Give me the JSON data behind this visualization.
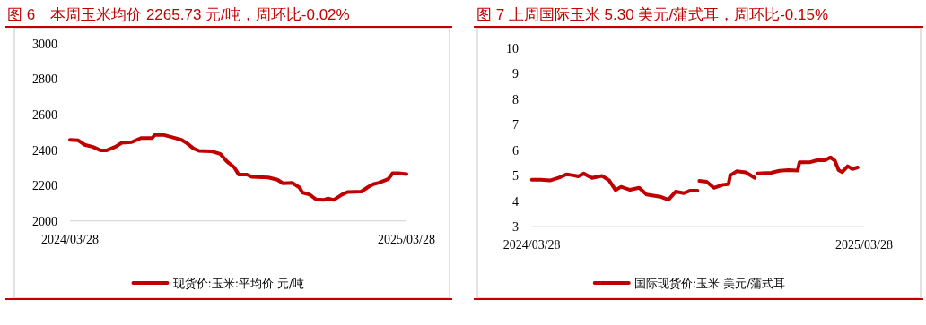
{
  "chart_data": [
    {
      "type": "line",
      "title": "图 6　本周玉米均价 2265.73 元/吨，周环比-0.02%",
      "x": [
        "2024-03-28",
        "2024-04-06",
        "2024-04-13",
        "2024-04-22",
        "2024-04-30",
        "2024-05-07",
        "2024-05-17",
        "2024-05-23",
        "2024-06-03",
        "2024-06-13",
        "2024-06-25",
        "2024-06-28",
        "2024-07-08",
        "2024-07-17",
        "2024-07-27",
        "2024-08-02",
        "2024-08-09",
        "2024-08-15",
        "2024-08-28",
        "2024-09-07",
        "2024-09-14",
        "2024-09-22",
        "2024-09-27",
        "2024-10-06",
        "2024-10-11",
        "2024-10-29",
        "2024-11-08",
        "2024-11-14",
        "2024-11-24",
        "2024-12-02",
        "2024-12-05",
        "2024-12-13",
        "2024-12-20",
        "2024-12-28",
        "2025-01-02",
        "2025-01-08",
        "2025-01-17",
        "2025-01-23",
        "2025-02-07",
        "2025-02-15",
        "2025-02-20",
        "2025-02-26",
        "2025-03-08",
        "2025-03-13",
        "2025-03-19",
        "2025-03-28"
      ],
      "series": [
        {
          "name": "现货价:玉米:平均价 元/吨",
          "color": "#c00000",
          "values": [
            2457,
            2454,
            2429,
            2417,
            2398,
            2398,
            2420,
            2440,
            2444,
            2467,
            2467,
            2484,
            2484,
            2471,
            2457,
            2437,
            2408,
            2395,
            2393,
            2378,
            2336,
            2303,
            2261,
            2261,
            2249,
            2245,
            2232,
            2212,
            2215,
            2188,
            2160,
            2148,
            2121,
            2118,
            2126,
            2118,
            2148,
            2163,
            2165,
            2193,
            2207,
            2215,
            2235,
            2269,
            2269,
            2264
          ]
        }
      ],
      "xlim": [
        "2024-03-28",
        "2025-03-28"
      ],
      "xticks": [
        {
          "value": "2024-03-28",
          "label": "2024/03/28"
        },
        {
          "value": "2025-03-28",
          "label": "2025/03/28"
        }
      ],
      "ylim": [
        2000,
        3000
      ],
      "yticks": [
        2000,
        2200,
        2400,
        2600,
        2800,
        3000
      ],
      "grid": false,
      "legend": "bottom",
      "marker": "none",
      "line_style": "solid"
    },
    {
      "type": "line",
      "title": "图 7 上周国际玉米 5.30 美元/蒲式耳，周环比-0.15%",
      "series": [
        {
          "name": "国际现货价:玉米 美元/蒲式耳",
          "color": "#c00000",
          "x": [
            "2024-03-28",
            "2024-04-07",
            "2024-04-17",
            "2024-04-27",
            "2024-05-05",
            "2024-05-13",
            "2024-05-18",
            "2024-05-24",
            "2024-06-02",
            "2024-06-13",
            "2024-06-21",
            "2024-06-28",
            "2024-07-04",
            "2024-07-14",
            "2024-07-24",
            "2024-08-01",
            "2024-08-16",
            "2024-08-25",
            "2024-09-02",
            "2024-09-11",
            "2024-09-18",
            "2024-09-26"
          ],
          "values": [
            4.84,
            4.84,
            4.81,
            4.92,
            5.05,
            5.01,
            4.97,
            5.08,
            4.91,
            4.99,
            4.81,
            4.43,
            4.56,
            4.44,
            4.52,
            4.26,
            4.17,
            4.05,
            4.37,
            4.31,
            4.41,
            4.41
          ]
        },
        {
          "color": "#c00000",
          "x": [
            "2024-09-28",
            "2024-10-06",
            "2024-10-14",
            "2024-10-24",
            "2024-10-30",
            "2024-11-01",
            "2024-11-08",
            "2024-11-18",
            "2024-11-28"
          ],
          "values": [
            4.79,
            4.76,
            4.52,
            4.64,
            4.66,
            5.01,
            5.17,
            5.13,
            4.91
          ]
        },
        {
          "color": "#c00000",
          "x": [
            "2024-12-01",
            "2024-12-16",
            "2024-12-25",
            "2025-01-04",
            "2025-01-14",
            "2025-01-16",
            "2025-01-27",
            "2025-02-05",
            "2025-02-13",
            "2025-02-19",
            "2025-02-24",
            "2025-02-28",
            "2025-03-04",
            "2025-03-10",
            "2025-03-15",
            "2025-03-21"
          ],
          "values": [
            5.08,
            5.11,
            5.19,
            5.22,
            5.2,
            5.52,
            5.52,
            5.61,
            5.6,
            5.72,
            5.58,
            5.22,
            5.14,
            5.37,
            5.26,
            5.32
          ]
        }
      ],
      "xlim": [
        "2024-03-28",
        "2025-03-28"
      ],
      "xticks": [
        {
          "value": "2024-03-28",
          "label": "2024/03/28"
        },
        {
          "value": "2025-03-28",
          "label": "2025/03/28"
        }
      ],
      "ylim": [
        3,
        10
      ],
      "yticks": [
        3,
        4,
        5,
        6,
        7,
        8,
        9,
        10
      ],
      "grid": false,
      "legend": "bottom",
      "marker": "none",
      "line_style": "solid"
    }
  ]
}
